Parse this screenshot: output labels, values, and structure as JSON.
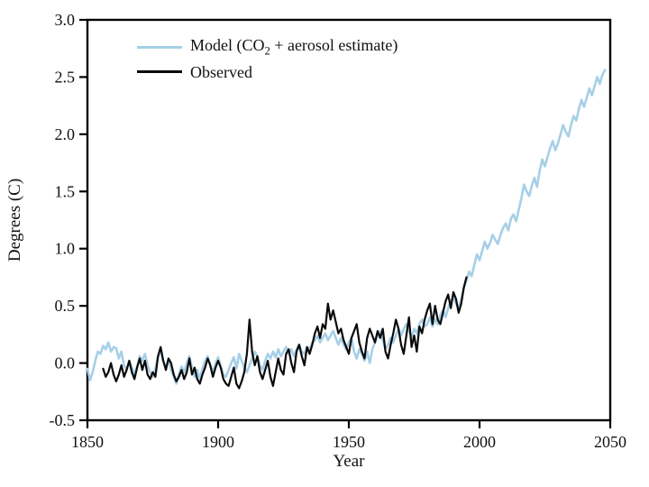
{
  "chart_data": {
    "type": "line",
    "title": "",
    "xlabel": "Year",
    "ylabel": "Degrees (C)",
    "xlim": [
      1850,
      2050
    ],
    "ylim": [
      -0.5,
      3.0
    ],
    "x_ticks": [
      1850,
      1900,
      1950,
      2000,
      2050
    ],
    "y_ticks": [
      -0.5,
      0.0,
      0.5,
      1.0,
      1.5,
      2.0,
      2.5,
      3.0
    ],
    "grid": false,
    "legend_position": "top-left-inside",
    "legend": {
      "model_prefix": "Model (CO",
      "model_sub": "2",
      "model_suffix": " + aerosol estimate)",
      "observed": "Observed"
    },
    "colors": {
      "model": "#a6cfe8",
      "observed": "#0a0a0a",
      "axis": "#000000"
    },
    "series": [
      {
        "name": "Model (CO2 + aerosol estimate)",
        "color": "#a6cfe8",
        "width": 2.6,
        "start_year": 1850,
        "values": [
          -0.05,
          -0.15,
          -0.08,
          0.02,
          0.1,
          0.08,
          0.15,
          0.12,
          0.18,
          0.1,
          0.14,
          0.13,
          0.04,
          0.1,
          -0.02,
          -0.06,
          0.02,
          -0.04,
          -0.1,
          -0.03,
          0.06,
          0.02,
          0.08,
          -0.02,
          -0.08,
          -0.12,
          -0.05,
          0.06,
          0.1,
          0.02,
          -0.04,
          0.03,
          -0.06,
          -0.12,
          -0.18,
          -0.1,
          -0.03,
          -0.08,
          0.0,
          0.06,
          -0.04,
          -0.12,
          -0.06,
          -0.14,
          -0.05,
          0.02,
          0.06,
          -0.02,
          -0.08,
          0.0,
          0.05,
          -0.03,
          -0.1,
          -0.12,
          -0.06,
          0.0,
          0.05,
          -0.05,
          0.08,
          0.02,
          -0.04,
          -0.08,
          -0.02,
          0.04,
          0.1,
          0.06,
          -0.02,
          -0.06,
          0.02,
          0.08,
          0.04,
          0.1,
          0.05,
          0.12,
          0.06,
          0.1,
          0.14,
          0.08,
          0.12,
          0.06,
          0.12,
          0.16,
          0.1,
          0.08,
          0.14,
          0.12,
          0.18,
          0.2,
          0.24,
          0.18,
          0.22,
          0.26,
          0.2,
          0.24,
          0.28,
          0.22,
          0.16,
          0.22,
          0.16,
          0.12,
          0.18,
          0.22,
          0.1,
          0.04,
          0.12,
          0.08,
          0.02,
          0.1,
          0.0,
          0.12,
          0.18,
          0.24,
          0.28,
          0.2,
          0.12,
          0.16,
          0.22,
          0.18,
          0.24,
          0.3,
          0.24,
          0.3,
          0.34,
          0.28,
          0.22,
          0.3,
          0.26,
          0.34,
          0.38,
          0.32,
          0.34,
          0.4,
          0.32,
          0.38,
          0.34,
          0.42,
          0.46,
          0.4,
          0.48,
          0.54,
          0.58,
          0.52,
          0.48,
          0.56,
          0.66,
          0.72,
          0.8,
          0.76,
          0.86,
          0.95,
          0.9,
          0.98,
          1.06,
          1.0,
          1.05,
          1.12,
          1.08,
          1.04,
          1.12,
          1.18,
          1.22,
          1.16,
          1.26,
          1.3,
          1.24,
          1.34,
          1.44,
          1.56,
          1.5,
          1.46,
          1.55,
          1.62,
          1.54,
          1.68,
          1.78,
          1.72,
          1.8,
          1.88,
          1.94,
          1.86,
          1.92,
          2.0,
          2.08,
          2.02,
          1.98,
          2.08,
          2.16,
          2.12,
          2.22,
          2.3,
          2.24,
          2.32,
          2.4,
          2.34,
          2.42,
          2.5,
          2.44,
          2.52,
          2.56
        ]
      },
      {
        "name": "Observed",
        "color": "#0a0a0a",
        "width": 2.2,
        "start_year": 1856,
        "values": [
          -0.05,
          -0.12,
          -0.08,
          0.0,
          -0.1,
          -0.16,
          -0.1,
          -0.02,
          -0.12,
          -0.06,
          0.02,
          -0.08,
          -0.14,
          -0.04,
          0.04,
          -0.06,
          0.02,
          -0.1,
          -0.14,
          -0.08,
          -0.12,
          0.06,
          0.14,
          0.02,
          -0.06,
          0.04,
          0.0,
          -0.1,
          -0.16,
          -0.12,
          -0.06,
          -0.14,
          -0.08,
          0.04,
          -0.1,
          -0.04,
          -0.14,
          -0.18,
          -0.1,
          -0.04,
          0.04,
          -0.02,
          -0.12,
          -0.04,
          0.02,
          -0.04,
          -0.14,
          -0.18,
          -0.2,
          -0.12,
          -0.04,
          -0.18,
          -0.22,
          -0.16,
          -0.08,
          0.08,
          0.38,
          0.1,
          -0.02,
          0.06,
          -0.08,
          -0.14,
          -0.06,
          0.02,
          -0.12,
          -0.2,
          -0.08,
          0.04,
          -0.06,
          -0.1,
          0.08,
          0.12,
          0.0,
          -0.08,
          0.1,
          0.16,
          0.06,
          -0.02,
          0.14,
          0.08,
          0.16,
          0.26,
          0.32,
          0.22,
          0.34,
          0.3,
          0.52,
          0.38,
          0.46,
          0.36,
          0.26,
          0.3,
          0.2,
          0.14,
          0.08,
          0.22,
          0.28,
          0.34,
          0.18,
          0.1,
          0.04,
          0.22,
          0.3,
          0.24,
          0.18,
          0.28,
          0.22,
          0.3,
          0.1,
          0.04,
          0.16,
          0.26,
          0.38,
          0.3,
          0.16,
          0.08,
          0.24,
          0.4,
          0.14,
          0.24,
          0.1,
          0.32,
          0.26,
          0.38,
          0.46,
          0.52,
          0.34,
          0.5,
          0.38,
          0.34,
          0.44,
          0.54,
          0.6,
          0.48,
          0.62,
          0.56,
          0.44,
          0.52,
          0.66,
          0.75
        ]
      }
    ]
  }
}
